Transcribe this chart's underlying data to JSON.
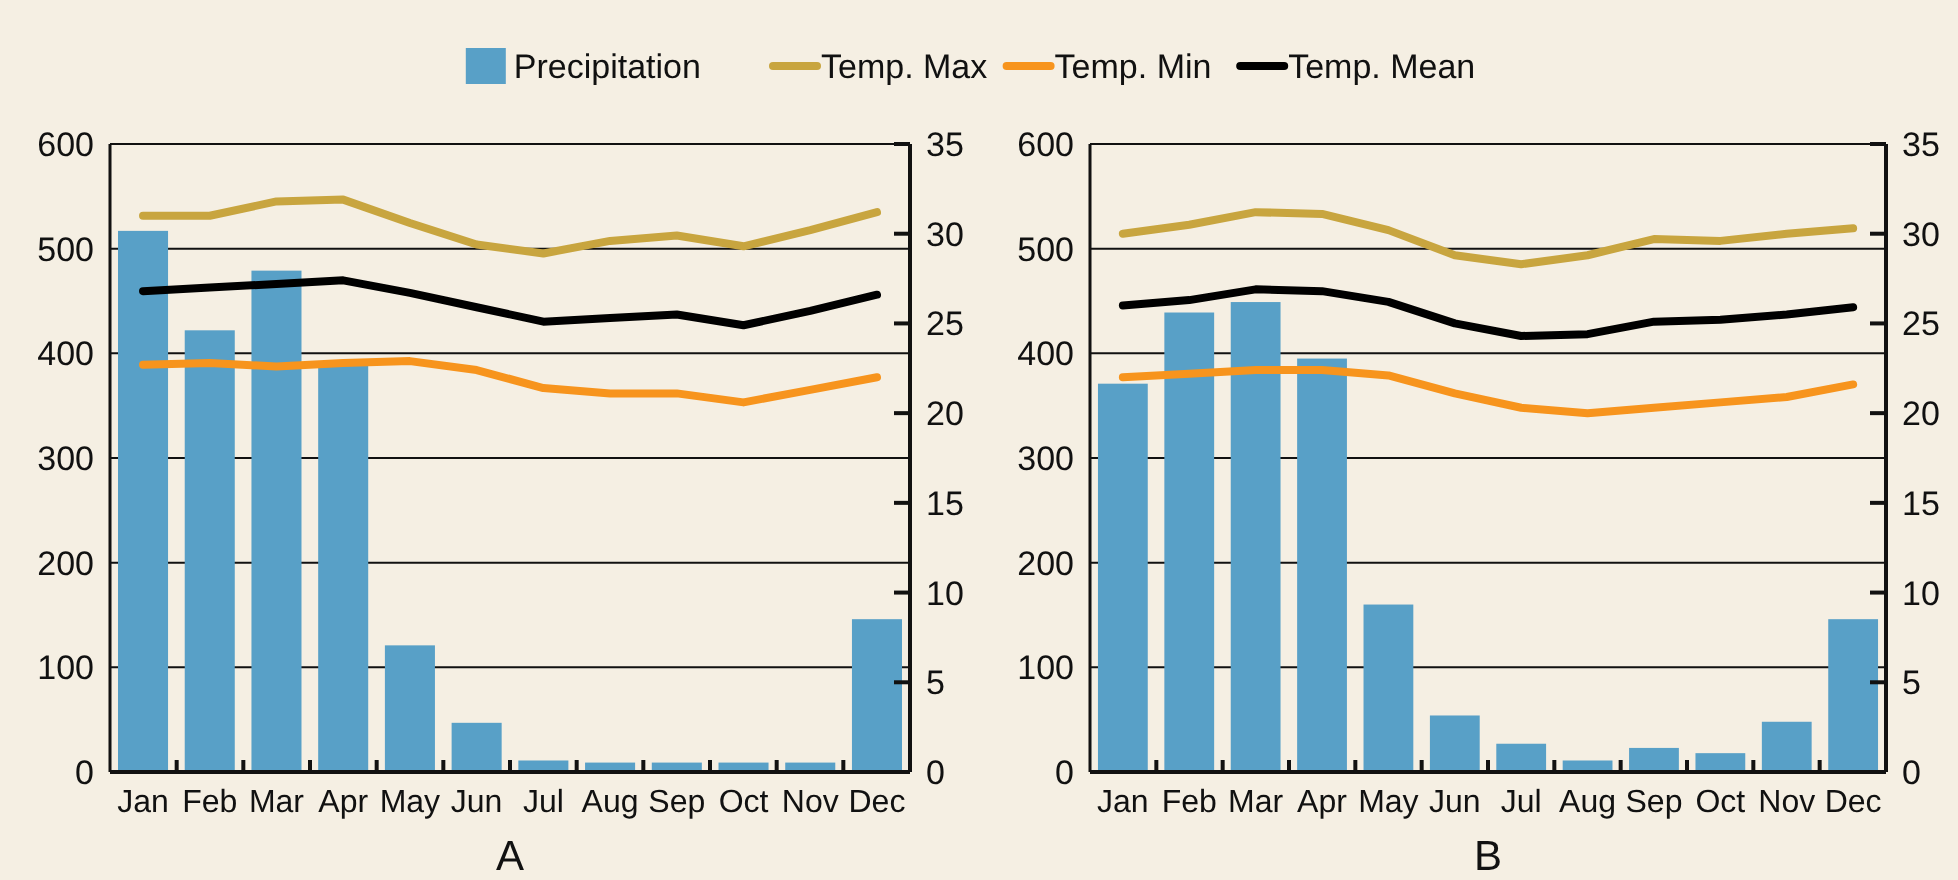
{
  "chart_data": [
    {
      "type": "bar",
      "xlabel": "A",
      "categories": [
        "Jan",
        "Feb",
        "Mar",
        "Apr",
        "May",
        "Jun",
        "Jul",
        "Aug",
        "Sep",
        "Oct",
        "Nov",
        "Dec"
      ],
      "ylim": [
        0,
        600
      ],
      "yticks": [
        0,
        100,
        200,
        300,
        400,
        500,
        600
      ],
      "y2lim": [
        0,
        35
      ],
      "y2ticks": [
        0,
        5,
        10,
        15,
        20,
        25,
        30,
        35
      ],
      "grid": "y",
      "legend": "top",
      "series": [
        {
          "name": "Precipitation",
          "color": "#58a0c7",
          "values": [
            517,
            422,
            479,
            389,
            121,
            47,
            11,
            9,
            9,
            9,
            9,
            146
          ]
        },
        {
          "name": "Temp. Max",
          "type": "line",
          "axis": "y2",
          "color": "#c8a53f",
          "values": [
            31.0,
            31.0,
            31.8,
            31.9,
            30.6,
            29.4,
            28.9,
            29.6,
            29.9,
            29.3,
            30.2,
            31.2
          ]
        },
        {
          "name": "Temp. Min",
          "type": "line",
          "axis": "y2",
          "color": "#f7941d",
          "values": [
            22.7,
            22.8,
            22.6,
            22.8,
            22.9,
            22.4,
            21.4,
            21.1,
            21.1,
            20.6,
            21.3,
            22.0
          ]
        },
        {
          "name": "Temp. Mean",
          "type": "line",
          "axis": "y2",
          "color": "#000000",
          "values": [
            26.8,
            27.0,
            27.2,
            27.4,
            26.7,
            25.9,
            25.1,
            25.3,
            25.5,
            24.9,
            25.7,
            26.6
          ]
        }
      ]
    },
    {
      "type": "bar",
      "xlabel": "B",
      "categories": [
        "Jan",
        "Feb",
        "Mar",
        "Apr",
        "May",
        "Jun",
        "Jul",
        "Aug",
        "Sep",
        "Oct",
        "Nov",
        "Dec"
      ],
      "ylim": [
        0,
        600
      ],
      "yticks": [
        0,
        100,
        200,
        300,
        400,
        500,
        600
      ],
      "y2lim": [
        0,
        35
      ],
      "y2ticks": [
        0,
        5,
        10,
        15,
        20,
        25,
        30,
        35
      ],
      "grid": "y",
      "series": [
        {
          "color": "#58a0c7",
          "values": [
            371,
            439,
            449,
            395,
            160,
            54,
            27,
            11,
            23,
            18,
            48,
            146
          ]
        },
        {
          "type": "line",
          "axis": "y2",
          "color": "#c8a53f",
          "values": [
            30.0,
            30.5,
            31.2,
            31.1,
            30.2,
            28.8,
            28.3,
            28.8,
            29.7,
            29.6,
            30.0,
            30.3
          ]
        },
        {
          "type": "line",
          "axis": "y2",
          "color": "#f7941d",
          "values": [
            22.0,
            22.2,
            22.4,
            22.4,
            22.1,
            21.1,
            20.3,
            20.0,
            20.3,
            20.6,
            20.9,
            21.6
          ]
        },
        {
          "type": "line",
          "axis": "y2",
          "color": "#000000",
          "values": [
            26.0,
            26.3,
            26.9,
            26.8,
            26.2,
            25.0,
            24.3,
            24.4,
            25.1,
            25.2,
            25.5,
            25.9
          ]
        }
      ]
    }
  ]
}
